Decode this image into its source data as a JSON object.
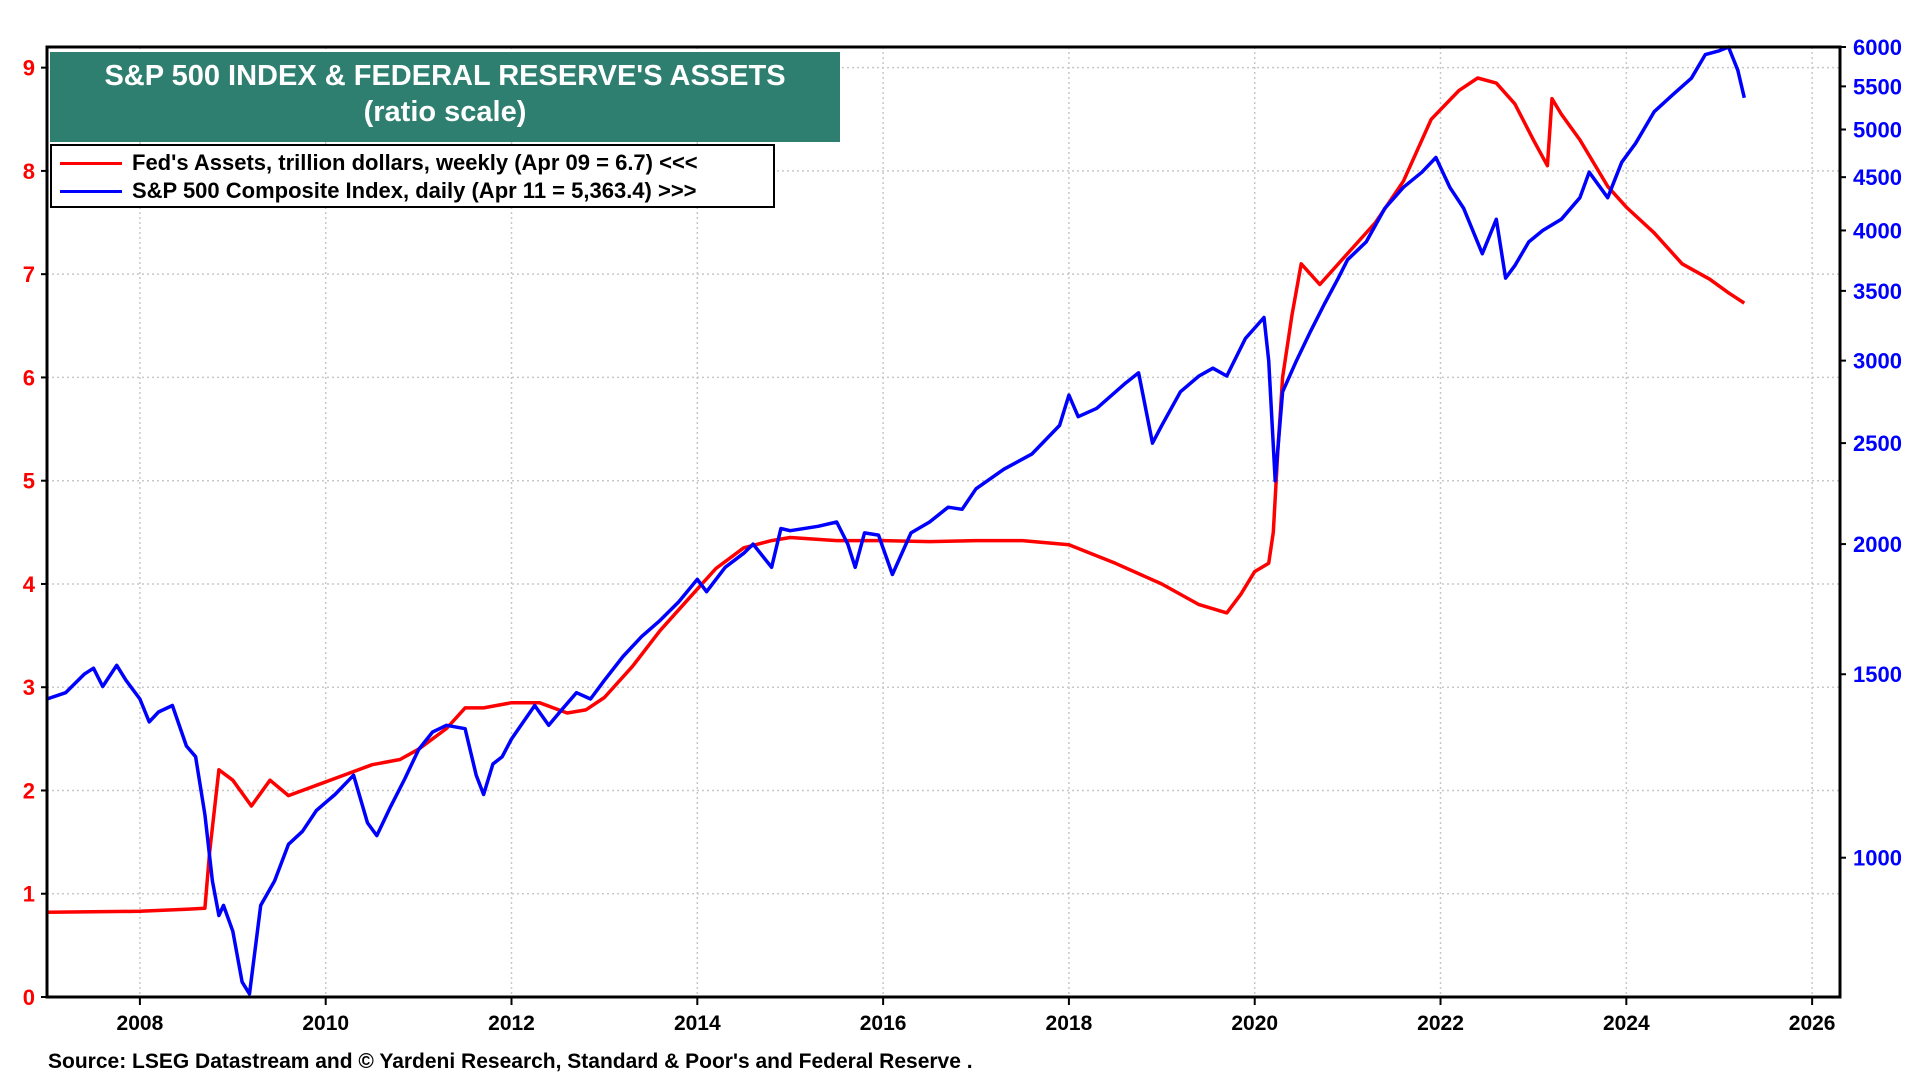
{
  "chart_data": {
    "type": "line",
    "title": "S&P 500 INDEX & FEDERAL RESERVE'S ASSETS",
    "subtitle": "(ratio scale)",
    "x_ticks": [
      "2008",
      "2010",
      "2012",
      "2014",
      "2016",
      "2018",
      "2020",
      "2022",
      "2024",
      "2026"
    ],
    "xlim": [
      2007.0,
      2026.3
    ],
    "left_axis": {
      "ylim": [
        0,
        9.2
      ],
      "ticks": [
        0,
        1,
        2,
        3,
        4,
        5,
        6,
        7,
        8,
        9
      ],
      "color": "#ff0000"
    },
    "right_axis": {
      "scale": "log",
      "ylim": [
        735,
        6000
      ],
      "ticks": [
        "1000",
        "1500",
        "2000",
        "2500",
        "3000",
        "3500",
        "4000",
        "4500",
        "5000",
        "5500",
        "6000"
      ],
      "color": "#0000ff"
    },
    "grid": true,
    "legend_placement": "top-left",
    "series": [
      {
        "name": "Fed's Assets, trillion dollars, weekly (Apr 09 = 6.7) <<<",
        "axis": "left",
        "color": "#ff0000",
        "x": [
          2007.0,
          2008.0,
          2008.5,
          2008.7,
          2008.75,
          2008.85,
          2009.0,
          2009.2,
          2009.4,
          2009.6,
          2009.9,
          2010.2,
          2010.5,
          2010.8,
          2011.0,
          2011.3,
          2011.5,
          2011.7,
          2012.0,
          2012.3,
          2012.6,
          2012.8,
          2013.0,
          2013.3,
          2013.6,
          2013.9,
          2014.2,
          2014.5,
          2014.8,
          2015.0,
          2015.5,
          2016.0,
          2016.5,
          2017.0,
          2017.5,
          2018.0,
          2018.5,
          2019.0,
          2019.4,
          2019.7,
          2019.85,
          2020.0,
          2020.15,
          2020.2,
          2020.25,
          2020.3,
          2020.4,
          2020.5,
          2020.7,
          2021.0,
          2021.3,
          2021.6,
          2021.9,
          2022.2,
          2022.4,
          2022.6,
          2022.8,
          2023.0,
          2023.15,
          2023.2,
          2023.3,
          2023.5,
          2023.8,
          2024.0,
          2024.3,
          2024.6,
          2024.9,
          2025.1,
          2025.27
        ],
        "y": [
          0.82,
          0.83,
          0.85,
          0.86,
          1.4,
          2.2,
          2.1,
          1.85,
          2.1,
          1.95,
          2.05,
          2.15,
          2.25,
          2.3,
          2.4,
          2.6,
          2.8,
          2.8,
          2.85,
          2.85,
          2.75,
          2.78,
          2.9,
          3.2,
          3.55,
          3.85,
          4.15,
          4.35,
          4.42,
          4.45,
          4.42,
          4.42,
          4.41,
          4.42,
          4.42,
          4.38,
          4.2,
          4.0,
          3.8,
          3.72,
          3.9,
          4.12,
          4.2,
          4.5,
          5.3,
          6.0,
          6.6,
          7.1,
          6.9,
          7.2,
          7.5,
          7.9,
          8.5,
          8.78,
          8.9,
          8.85,
          8.65,
          8.3,
          8.05,
          8.7,
          8.55,
          8.3,
          7.85,
          7.65,
          7.4,
          7.1,
          6.95,
          6.82,
          6.72
        ]
      },
      {
        "name": "S&P 500 Composite Index, daily (Apr 11 = 5,363.4) >>>",
        "axis": "right",
        "color": "#0000ff",
        "x": [
          2007.0,
          2007.2,
          2007.4,
          2007.5,
          2007.6,
          2007.75,
          2007.85,
          2008.0,
          2008.1,
          2008.2,
          2008.35,
          2008.5,
          2008.6,
          2008.7,
          2008.78,
          2008.85,
          2008.9,
          2009.0,
          2009.1,
          2009.18,
          2009.3,
          2009.45,
          2009.6,
          2009.75,
          2009.9,
          2010.0,
          2010.1,
          2010.3,
          2010.45,
          2010.55,
          2010.7,
          2010.85,
          2011.0,
          2011.15,
          2011.3,
          2011.5,
          2011.62,
          2011.7,
          2011.8,
          2011.9,
          2012.0,
          2012.25,
          2012.4,
          2012.55,
          2012.7,
          2012.85,
          2013.0,
          2013.2,
          2013.4,
          2013.6,
          2013.8,
          2014.0,
          2014.1,
          2014.3,
          2014.5,
          2014.6,
          2014.8,
          2014.9,
          2015.0,
          2015.3,
          2015.5,
          2015.62,
          2015.7,
          2015.8,
          2015.95,
          2016.1,
          2016.3,
          2016.5,
          2016.7,
          2016.85,
          2017.0,
          2017.3,
          2017.6,
          2017.9,
          2018.0,
          2018.1,
          2018.3,
          2018.6,
          2018.75,
          2018.9,
          2019.0,
          2019.2,
          2019.4,
          2019.55,
          2019.7,
          2019.9,
          2020.1,
          2020.15,
          2020.22,
          2020.3,
          2020.45,
          2020.6,
          2020.75,
          2020.9,
          2021.0,
          2021.2,
          2021.4,
          2021.6,
          2021.8,
          2021.95,
          2022.1,
          2022.25,
          2022.45,
          2022.6,
          2022.7,
          2022.8,
          2022.95,
          2023.1,
          2023.3,
          2023.5,
          2023.6,
          2023.8,
          2023.95,
          2024.1,
          2024.3,
          2024.5,
          2024.7,
          2024.85,
          2025.0,
          2025.1,
          2025.2,
          2025.27
        ],
        "y": [
          1420,
          1440,
          1500,
          1520,
          1460,
          1530,
          1480,
          1420,
          1350,
          1380,
          1400,
          1280,
          1250,
          1100,
          950,
          880,
          900,
          850,
          760,
          740,
          900,
          950,
          1030,
          1060,
          1110,
          1130,
          1150,
          1200,
          1080,
          1050,
          1120,
          1190,
          1270,
          1320,
          1340,
          1330,
          1200,
          1150,
          1230,
          1250,
          1300,
          1400,
          1340,
          1390,
          1440,
          1420,
          1480,
          1560,
          1630,
          1690,
          1760,
          1850,
          1800,
          1900,
          1960,
          2000,
          1900,
          2070,
          2060,
          2080,
          2100,
          2000,
          1900,
          2050,
          2040,
          1870,
          2050,
          2100,
          2170,
          2160,
          2260,
          2360,
          2440,
          2600,
          2780,
          2650,
          2700,
          2850,
          2920,
          2500,
          2600,
          2800,
          2900,
          2950,
          2900,
          3150,
          3300,
          3000,
          2300,
          2800,
          3000,
          3200,
          3400,
          3600,
          3750,
          3900,
          4200,
          4400,
          4550,
          4700,
          4400,
          4200,
          3800,
          4100,
          3600,
          3700,
          3900,
          4000,
          4100,
          4300,
          4550,
          4300,
          4650,
          4850,
          5200,
          5400,
          5600,
          5900,
          5950,
          6050,
          5700,
          5363
        ]
      }
    ]
  },
  "legend": {
    "fed_label": "Fed's Assets, trillion dollars, weekly (Apr 09 = 6.7) <<<",
    "sp_label": "S&P 500 Composite Index, daily (Apr 11 = 5,363.4) >>>"
  },
  "source": "Source: LSEG Datastream and © Yardeni Research, Standard & Poor's and Federal Reserve ."
}
